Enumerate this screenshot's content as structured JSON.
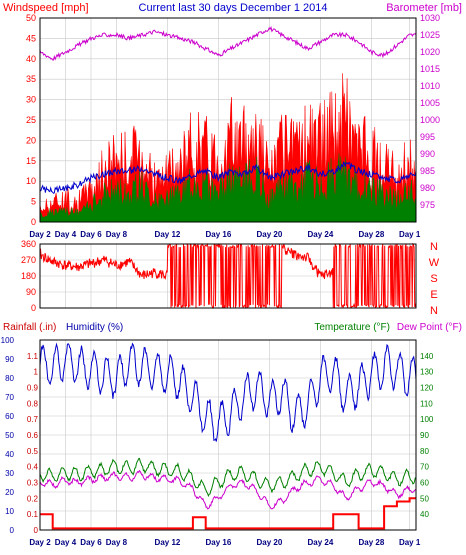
{
  "header": {
    "left_label": "Windspeed [mph]",
    "title": "Current last 30 days December 1 2014",
    "right_label": "Barometer [mb]"
  },
  "colors": {
    "background": "#ffffff",
    "grid": "#c8c8c8",
    "red": "#ff0000",
    "green": "#008000",
    "blue": "#0000cc",
    "magenta": "#cc00cc",
    "dark_red": "#cc0000",
    "navy": "#0000aa"
  },
  "chart_data": [
    {
      "type": "area",
      "panel": "wind",
      "x_ticks": [
        "Day 2",
        "Day 4",
        "Day 6",
        "Day 8",
        "Day 12",
        "Day 16",
        "Day 20",
        "Day 24",
        "Day 28",
        "Day 1"
      ],
      "x_tick_days": [
        0,
        2,
        4,
        6,
        10,
        14,
        18,
        22,
        26,
        29
      ],
      "x_range": [
        0,
        29.5
      ],
      "left_axis": {
        "label": "Windspeed [mph]",
        "range": [
          0,
          50
        ],
        "ticks": [
          "0",
          "5",
          "10",
          "15",
          "20",
          "25",
          "30",
          "35",
          "40",
          "45",
          "50"
        ]
      },
      "right_axis": {
        "label": "Barometer [mb]",
        "range": [
          970,
          1030
        ],
        "ticks": [
          "975",
          "980",
          "985",
          "990",
          "995",
          "1000",
          "1005",
          "1010",
          "1015",
          "1020",
          "1025",
          "1030"
        ]
      },
      "series": [
        {
          "key": "gust",
          "color": "#ff0000",
          "values": [
            4,
            6,
            7,
            6,
            10,
            15,
            20,
            18,
            22,
            12,
            14,
            16,
            24,
            22,
            20,
            25,
            23,
            28,
            14,
            22,
            20,
            26,
            24,
            28,
            32,
            22,
            20,
            16,
            14,
            18
          ]
        },
        {
          "key": "average",
          "color": "#008000",
          "values": [
            2,
            3,
            3,
            3,
            5,
            8,
            10,
            9,
            11,
            6,
            7,
            8,
            12,
            11,
            10,
            13,
            12,
            14,
            7,
            11,
            10,
            13,
            12,
            14,
            15,
            11,
            10,
            8,
            7,
            9
          ]
        },
        {
          "key": "barometer",
          "color": "#cc00cc",
          "values": [
            1020,
            1018,
            1020,
            1022,
            1024,
            1025,
            1025,
            1024,
            1025,
            1026,
            1025,
            1024,
            1023,
            1021,
            1019,
            1021,
            1023,
            1025,
            1027,
            1025,
            1023,
            1021,
            1023,
            1025,
            1025,
            1023,
            1020,
            1019,
            1022,
            1025
          ]
        },
        {
          "key": "barometer_line",
          "color": "#0000cc",
          "values": [
            980,
            979,
            980,
            981,
            983,
            984,
            985,
            985,
            986,
            984,
            983,
            982,
            984,
            985,
            983,
            985,
            984,
            986,
            983,
            984,
            985,
            986,
            984,
            985,
            987,
            985,
            984,
            983,
            982,
            984
          ]
        }
      ]
    },
    {
      "type": "scatter",
      "panel": "direction",
      "left_axis": {
        "range": [
          0,
          360
        ],
        "ticks": [
          "0",
          "90",
          "180",
          "270",
          "360"
        ]
      },
      "right_axis": {
        "ticks": [
          "N",
          "W",
          "S",
          "E",
          "N"
        ]
      },
      "series": [
        {
          "key": "wind_direction",
          "color": "#ff0000",
          "values": [
            300,
            260,
            240,
            230,
            250,
            270,
            240,
            260,
            180,
            200,
            180,
            200,
            220,
            240,
            180,
            200,
            280,
            300,
            320,
            340,
            300,
            280,
            180,
            200,
            240,
            260,
            180,
            200,
            180,
            180
          ]
        }
      ]
    },
    {
      "type": "line",
      "panel": "humidity-temperature",
      "x_ticks": [
        "Day 2",
        "Day 4",
        "Day 6",
        "Day 8",
        "Day 12",
        "Day 16",
        "Day 20",
        "Day 24",
        "Day 28",
        "Day 1"
      ],
      "left_labels": [
        "Rainfall (.in)",
        "Humidity (%)"
      ],
      "right_labels": [
        "Temperature (°F)",
        "Dew Point (°F)"
      ],
      "humidity_axis": {
        "range": [
          0,
          100
        ],
        "ticks": [
          "0",
          "10",
          "20",
          "30",
          "40",
          "50",
          "60",
          "70",
          "80",
          "90",
          "100"
        ]
      },
      "rainfall_axis": {
        "range": [
          0,
          1.2
        ],
        "ticks": [
          "0",
          "0.1",
          "0.2",
          "0.3",
          "0.4",
          "0.5",
          "0.6",
          "0.7",
          "0.8",
          "0.9",
          "1",
          "1.1"
        ]
      },
      "temperature_axis": {
        "range": [
          30,
          150
        ],
        "ticks": [
          "40",
          "50",
          "60",
          "70",
          "80",
          "90",
          "100",
          "110",
          "120",
          "130",
          "140"
        ]
      },
      "series": [
        {
          "key": "humidity",
          "color": "#0000cc",
          "values": [
            88,
            85,
            90,
            86,
            84,
            82,
            80,
            88,
            86,
            84,
            82,
            78,
            70,
            60,
            55,
            62,
            70,
            75,
            68,
            72,
            60,
            66,
            80,
            84,
            70,
            75,
            82,
            86,
            84,
            80
          ]
        },
        {
          "key": "temperature",
          "color": "#008000",
          "values": [
            65,
            64,
            66,
            65,
            67,
            68,
            70,
            69,
            71,
            69,
            68,
            67,
            62,
            55,
            60,
            65,
            66,
            62,
            58,
            60,
            64,
            68,
            70,
            66,
            60,
            65,
            68,
            66,
            62,
            64
          ]
        },
        {
          "key": "dew_point",
          "color": "#cc00cc",
          "values": [
            60,
            59,
            61,
            60,
            62,
            63,
            64,
            63,
            65,
            63,
            62,
            61,
            56,
            45,
            50,
            58,
            60,
            55,
            45,
            48,
            56,
            60,
            62,
            58,
            50,
            56,
            60,
            58,
            52,
            56
          ]
        },
        {
          "key": "rainfall",
          "color": "#cc0000",
          "values": [
            0.1,
            0.01,
            0.01,
            0.01,
            0.01,
            0.01,
            0.01,
            0.01,
            0.01,
            0.01,
            0.01,
            0.01,
            0.08,
            0.01,
            0.01,
            0.01,
            0.01,
            0.01,
            0.01,
            0.01,
            0.01,
            0.01,
            0.01,
            0.1,
            0.1,
            0.01,
            0.01,
            0.15,
            0.18,
            0.2
          ]
        }
      ]
    }
  ]
}
